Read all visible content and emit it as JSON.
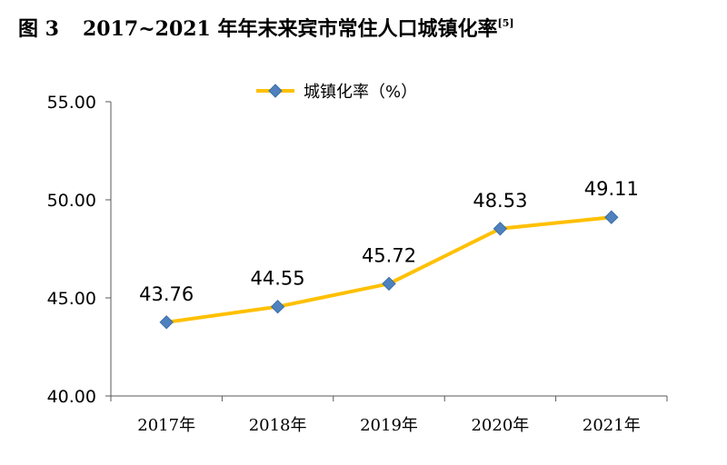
{
  "title": {
    "figure": "图 3",
    "text": "2017~2021 年年末来宾市常住人口城镇化率",
    "ref": "[5]"
  },
  "chart_data": {
    "type": "line",
    "categories": [
      "2017年",
      "2018年",
      "2019年",
      "2020年",
      "2021年"
    ],
    "series": [
      {
        "name": "城镇化率（%）",
        "values": [
          43.76,
          44.55,
          45.72,
          48.53,
          49.11
        ],
        "data_labels": [
          "43.76",
          "44.55",
          "45.72",
          "48.53",
          "49.11"
        ]
      }
    ],
    "ylim": [
      40,
      55
    ],
    "yticks": [
      40,
      45,
      50,
      55
    ],
    "ytick_labels": [
      "40.00",
      "45.00",
      "50.00",
      "55.00"
    ],
    "legend_position": "top",
    "grid": false,
    "colors": {
      "line": "#FFC000",
      "marker": "#4F81BD",
      "axis": "#595959"
    }
  }
}
